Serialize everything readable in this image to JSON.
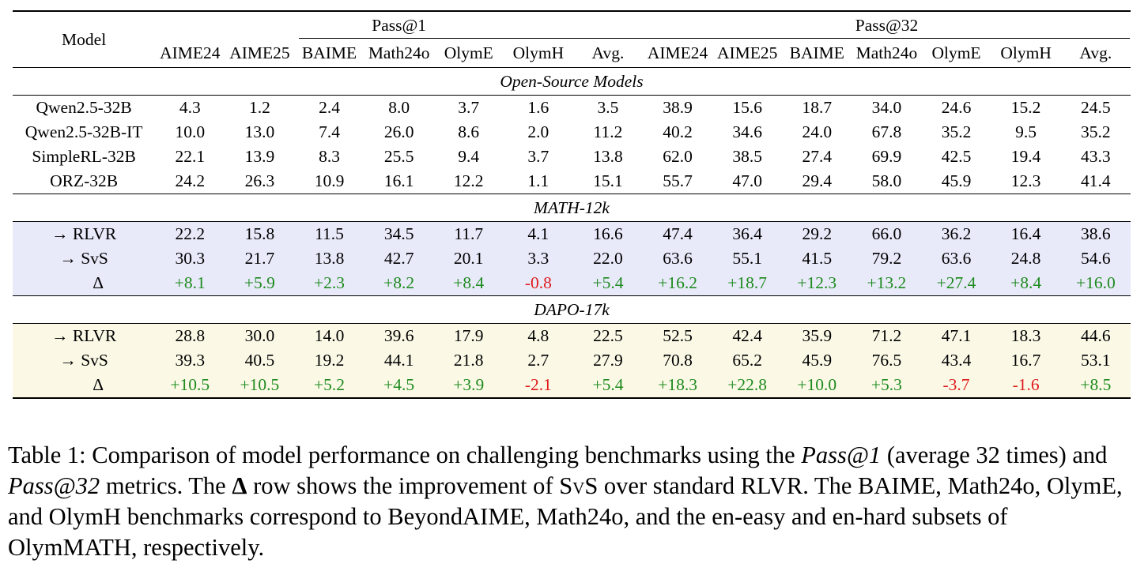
{
  "table": {
    "model_header": "Model",
    "group_pass1": "Pass@1",
    "group_pass32": "Pass@32",
    "columns": [
      "AIME24",
      "AIME25",
      "BAIME",
      "Math24o",
      "OlymE",
      "OlymH",
      "Avg.",
      "AIME24",
      "AIME25",
      "BAIME",
      "Math24o",
      "OlymE",
      "OlymH",
      "Avg."
    ],
    "sections": {
      "open_source": "Open-Source Models",
      "math12k": "MATH-12k",
      "dapo17k": "DAPO-17k"
    },
    "open_source_rows": [
      {
        "model": "Qwen2.5-32B",
        "values": [
          "4.3",
          "1.2",
          "2.4",
          "8.0",
          "3.7",
          "1.6",
          "3.5",
          "38.9",
          "15.6",
          "18.7",
          "34.0",
          "24.6",
          "15.2",
          "24.5"
        ]
      },
      {
        "model": "Qwen2.5-32B-IT",
        "values": [
          "10.0",
          "13.0",
          "7.4",
          "26.0",
          "8.6",
          "2.0",
          "11.2",
          "40.2",
          "34.6",
          "24.0",
          "67.8",
          "35.2",
          "9.5",
          "35.2"
        ]
      },
      {
        "model": "SimpleRL-32B",
        "values": [
          "22.1",
          "13.9",
          "8.3",
          "25.5",
          "9.4",
          "3.7",
          "13.8",
          "62.0",
          "38.5",
          "27.4",
          "69.9",
          "42.5",
          "19.4",
          "43.3"
        ]
      },
      {
        "model": "ORZ-32B",
        "values": [
          "24.2",
          "26.3",
          "10.9",
          "16.1",
          "12.2",
          "1.1",
          "15.1",
          "55.7",
          "47.0",
          "29.4",
          "58.0",
          "45.9",
          "12.3",
          "41.4"
        ]
      }
    ],
    "math12k_rows": {
      "rlvr": {
        "model": "→ RLVR",
        "values": [
          "22.2",
          "15.8",
          "11.5",
          "34.5",
          "11.7",
          "4.1",
          "16.6",
          "47.4",
          "36.4",
          "29.2",
          "66.0",
          "36.2",
          "16.4",
          "38.6"
        ]
      },
      "svs": {
        "model": "→ SvS",
        "values": [
          "30.3",
          "21.7",
          "13.8",
          "42.7",
          "20.1",
          "3.3",
          "22.0",
          "63.6",
          "55.1",
          "41.5",
          "79.2",
          "63.6",
          "24.8",
          "54.6"
        ]
      },
      "delta": {
        "model": "Δ",
        "values": [
          "+8.1",
          "+5.9",
          "+2.3",
          "+8.2",
          "+8.4",
          "-0.8",
          "+5.4",
          "+16.2",
          "+18.7",
          "+12.3",
          "+13.2",
          "+27.4",
          "+8.4",
          "+16.0"
        ]
      }
    },
    "dapo17k_rows": {
      "rlvr": {
        "model": "→ RLVR",
        "values": [
          "28.8",
          "30.0",
          "14.0",
          "39.6",
          "17.9",
          "4.8",
          "22.5",
          "52.5",
          "42.4",
          "35.9",
          "71.2",
          "47.1",
          "18.3",
          "44.6"
        ]
      },
      "svs": {
        "model": "→ SvS",
        "values": [
          "39.3",
          "40.5",
          "19.2",
          "44.1",
          "21.8",
          "2.7",
          "27.9",
          "70.8",
          "65.2",
          "45.9",
          "76.5",
          "43.4",
          "16.7",
          "53.1"
        ]
      },
      "delta": {
        "model": "Δ",
        "values": [
          "+10.5",
          "+10.5",
          "+5.2",
          "+4.5",
          "+3.9",
          "-2.1",
          "+5.4",
          "+18.3",
          "+22.8",
          "+10.0",
          "+5.3",
          "-3.7",
          "-1.6",
          "+8.5"
        ]
      }
    },
    "colors": {
      "math12k_bg": "#e8eafa",
      "dapo17k_bg": "#fbf9e6",
      "positive": "#1e8a1e",
      "negative": "#e01b1b"
    }
  },
  "caption": {
    "p1": "Table 1: Comparison of model performance on challenging benchmarks using the ",
    "i1": "Pass@1",
    "p2": " (average 32 times) and ",
    "i2": "Pass@32",
    "p3": " metrics. The ",
    "delta": "Δ",
    "p4": " row shows the improvement of ",
    "svs": "SvS",
    "p5": " over standard RLVR. The BAIME, Math24o, OlymE, and OlymH benchmarks correspond to BeyondAIME, Math24o, and the en-easy and en-hard subsets of OlymMATH, respectively."
  }
}
